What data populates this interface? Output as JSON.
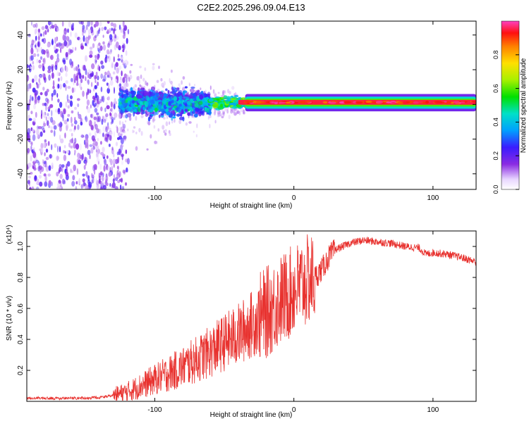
{
  "title": "C2E2.2025.296.09.04.E13",
  "colors": {
    "snr_line": "#e8322f",
    "cold": "#7b2cff",
    "axis": "#000000"
  },
  "chart_data": [
    {
      "type": "heatmap",
      "name": "spectrogram",
      "xlabel": "Height of straight line (km)",
      "ylabel": "Frequency (Hz)",
      "xlim": [
        -192,
        131
      ],
      "ylim": [
        -49,
        48
      ],
      "xticks": [
        -100,
        0,
        100
      ],
      "xtick_labels": [
        "-100",
        "0",
        "100"
      ],
      "yticks": [
        -40,
        -20,
        0,
        20,
        40
      ],
      "ytick_labels": [
        "-40",
        "-20",
        "0",
        "20",
        "40"
      ],
      "colorbar": {
        "label": "Normalized spectral amplitude",
        "range": [
          0,
          1
        ],
        "ticks": [
          0.0,
          0.2,
          0.4,
          0.6,
          0.8
        ],
        "tick_labels": [
          "0.0",
          "0.2",
          "0.4",
          "0.6",
          "0.8"
        ]
      },
      "regions": [
        {
          "x_range": [
            -192,
            -125
          ],
          "freq_range": [
            -49,
            48
          ],
          "amplitude": 0.12,
          "description": "broadband noise"
        },
        {
          "x_range": [
            -125,
            -60
          ],
          "freq_range": [
            -13,
            15
          ],
          "amplitude": 0.3
        },
        {
          "x_range": [
            -60,
            0
          ],
          "freq_range": [
            -3,
            5
          ],
          "amplitude": 0.75
        },
        {
          "x_range": [
            0,
            131
          ],
          "freq_range": [
            -1,
            3
          ],
          "amplitude": 0.98
        }
      ]
    },
    {
      "type": "line",
      "name": "snr",
      "xlabel": "Height of straight line (km)",
      "ylabel": "SNR (10 * v/v)",
      "y_multiplier": "(x10⁴)",
      "xlim": [
        -192,
        131
      ],
      "ylim": [
        0,
        1.1
      ],
      "xticks": [
        -100,
        0,
        100
      ],
      "xtick_labels": [
        "-100",
        "0",
        "100"
      ],
      "yticks": [
        0.2,
        0.4,
        0.6,
        0.8,
        1.0
      ],
      "ytick_labels": [
        "0.2",
        "0.4",
        "0.6",
        "0.8",
        "1.0"
      ],
      "series": [
        {
          "name": "SNR",
          "x": [
            -192,
            -170,
            -150,
            -140,
            -130,
            -120,
            -110,
            -100,
            -90,
            -80,
            -70,
            -60,
            -50,
            -40,
            -30,
            -20,
            -15,
            -10,
            -5,
            0,
            5,
            10,
            15,
            20,
            25,
            30,
            40,
            50,
            60,
            70,
            80,
            90,
            95,
            100,
            110,
            120,
            131
          ],
          "y": [
            0.02,
            0.02,
            0.02,
            0.025,
            0.04,
            0.06,
            0.1,
            0.14,
            0.18,
            0.22,
            0.27,
            0.32,
            0.38,
            0.43,
            0.5,
            0.57,
            0.61,
            0.65,
            0.68,
            0.72,
            0.75,
            0.78,
            0.8,
            0.85,
            0.93,
            0.98,
            1.02,
            1.04,
            1.03,
            1.02,
            1.0,
            0.99,
            0.95,
            0.96,
            0.95,
            0.93,
            0.9
          ]
        }
      ]
    }
  ]
}
